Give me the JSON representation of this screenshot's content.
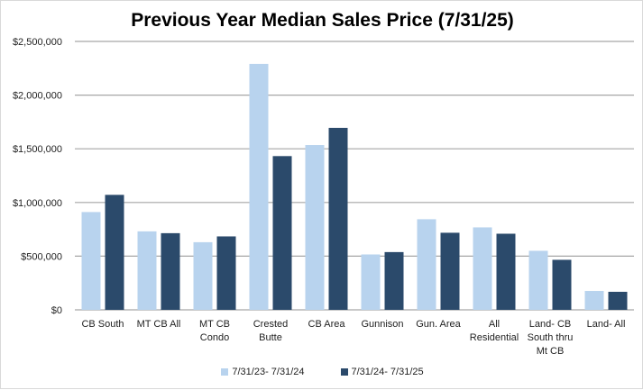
{
  "chart_data": {
    "type": "bar",
    "title": "Previous Year Median Sales Price (7/31/25)",
    "xlabel": "",
    "ylabel": "",
    "ylim": [
      0,
      2500000
    ],
    "yticks": [
      0,
      500000,
      1000000,
      1500000,
      2000000,
      2500000
    ],
    "ytick_labels": [
      "$0",
      "$500,000",
      "$1,000,000",
      "$1,500,000",
      "$2,000,000",
      "$2,500,000"
    ],
    "grid": true,
    "legend_position": "bottom",
    "categories": [
      [
        "CB South"
      ],
      [
        "MT CB All"
      ],
      [
        "MT CB",
        "Condo"
      ],
      [
        "Crested",
        "Butte"
      ],
      [
        "CB Area"
      ],
      [
        "Gunnison"
      ],
      [
        "Gun. Area"
      ],
      [
        "All",
        "Residential"
      ],
      [
        "Land- CB",
        "South thru",
        "Mt CB"
      ],
      [
        "Land- All"
      ]
    ],
    "series": [
      {
        "name": "7/31/23- 7/31/24",
        "color": "#b8d3ee",
        "values": [
          911000,
          731000,
          630000,
          2291000,
          1535000,
          516000,
          844000,
          768000,
          550000,
          176000
        ]
      },
      {
        "name": "7/31/24- 7/31/25",
        "color": "#2b4a6b",
        "values": [
          1071000,
          714000,
          684000,
          1432000,
          1695000,
          538000,
          718000,
          709000,
          466000,
          168000
        ]
      }
    ]
  }
}
